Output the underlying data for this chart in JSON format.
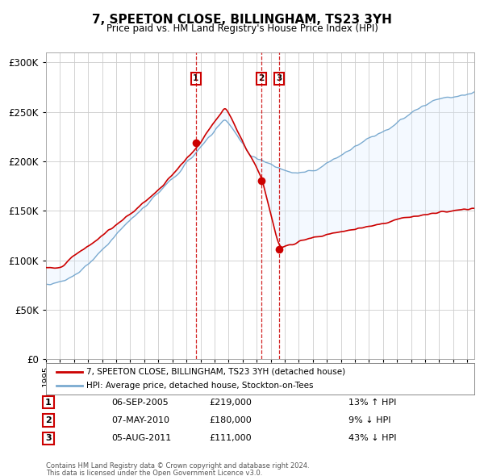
{
  "title": "7, SPEETON CLOSE, BILLINGHAM, TS23 3YH",
  "subtitle": "Price paid vs. HM Land Registry's House Price Index (HPI)",
  "legend_label_red": "7, SPEETON CLOSE, BILLINGHAM, TS23 3YH (detached house)",
  "legend_label_blue": "HPI: Average price, detached house, Stockton-on-Tees",
  "xlim_start": 1995.0,
  "xlim_end": 2025.5,
  "ylim_bottom": 0,
  "ylim_top": 310000,
  "yticks": [
    0,
    50000,
    100000,
    150000,
    200000,
    250000,
    300000
  ],
  "ytick_labels": [
    "£0",
    "£50K",
    "£100K",
    "£150K",
    "£200K",
    "£250K",
    "£300K"
  ],
  "transaction_markers": [
    {
      "x": 2005.68,
      "y_price": 219000,
      "label": "1",
      "date": "06-SEP-2005",
      "price": "£219,000",
      "hpi_text": "13% ↑ HPI"
    },
    {
      "x": 2010.35,
      "y_price": 180000,
      "label": "2",
      "date": "07-MAY-2010",
      "price": "£180,000",
      "hpi_text": "9% ↓ HPI"
    },
    {
      "x": 2011.59,
      "y_price": 111000,
      "label": "3",
      "date": "05-AUG-2011",
      "price": "£111,000",
      "hpi_text": "43% ↓ HPI"
    }
  ],
  "footer_line1": "Contains HM Land Registry data © Crown copyright and database right 2024.",
  "footer_line2": "This data is licensed under the Open Government Licence v3.0.",
  "red_color": "#cc0000",
  "blue_color": "#7aaad0",
  "shade_color": "#ddeeff",
  "grid_color": "#cccccc",
  "background_color": "#ffffff"
}
